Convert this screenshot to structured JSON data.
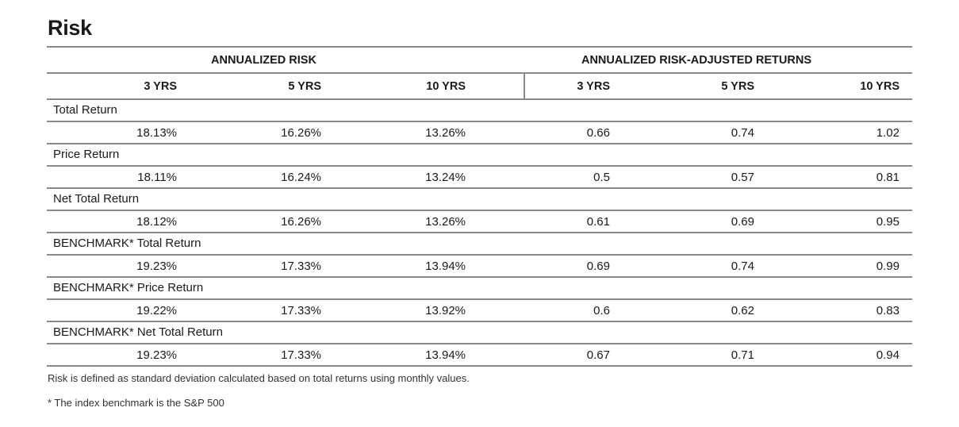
{
  "title": "Risk",
  "groups": {
    "risk": "ANNUALIZED RISK",
    "adjusted": "ANNUALIZED RISK-ADJUSTED RETURNS"
  },
  "columns": [
    "3 YRS",
    "5 YRS",
    "10 YRS",
    "3 YRS",
    "5 YRS",
    "10 YRS"
  ],
  "rows": [
    {
      "label": "Total Return",
      "values": [
        "18.13%",
        "16.26%",
        "13.26%",
        "0.66",
        "0.74",
        "1.02"
      ]
    },
    {
      "label": "Price Return",
      "values": [
        "18.11%",
        "16.24%",
        "13.24%",
        "0.5",
        "0.57",
        "0.81"
      ]
    },
    {
      "label": "Net Total Return",
      "values": [
        "18.12%",
        "16.26%",
        "13.26%",
        "0.61",
        "0.69",
        "0.95"
      ]
    },
    {
      "label": "BENCHMARK* Total Return",
      "values": [
        "19.23%",
        "17.33%",
        "13.94%",
        "0.69",
        "0.74",
        "0.99"
      ]
    },
    {
      "label": "BENCHMARK* Price Return",
      "values": [
        "19.22%",
        "17.33%",
        "13.92%",
        "0.6",
        "0.62",
        "0.83"
      ]
    },
    {
      "label": "BENCHMARK* Net Total Return",
      "values": [
        "19.23%",
        "17.33%",
        "13.94%",
        "0.67",
        "0.71",
        "0.94"
      ]
    }
  ],
  "notes": [
    "Risk is defined as standard deviation calculated based on total returns using monthly values.",
    "* The index benchmark is the  S&P 500"
  ]
}
